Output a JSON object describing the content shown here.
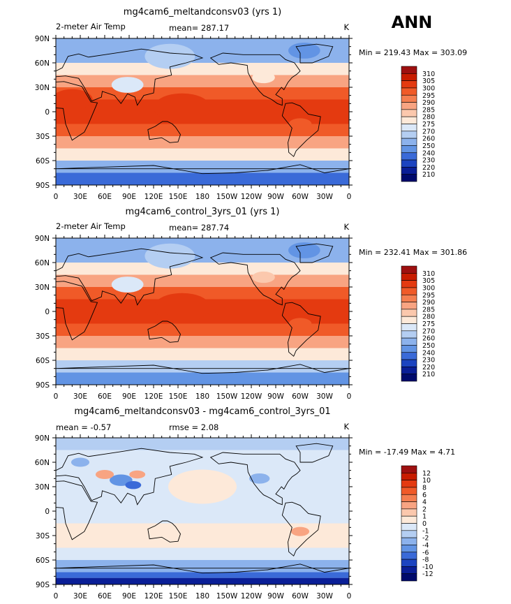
{
  "season": "ANN",
  "axes": {
    "lat_labels": [
      "90N",
      "60N",
      "30N",
      "0",
      "30S",
      "60S",
      "90S"
    ],
    "lon_labels": [
      "0",
      "30E",
      "60E",
      "90E",
      "120E",
      "150E",
      "180",
      "150W",
      "120W",
      "90W",
      "60W",
      "30W",
      "0"
    ]
  },
  "chart_data": [
    {
      "type": "heatmap",
      "title": "mg4cam6_meltandconsv03 (yrs 1)",
      "variable": "2-meter Air Temp",
      "units": "K",
      "stat_left": "mean= 287.17",
      "stat_mid": "",
      "min_max": "Min = 219.43 Max = 303.09",
      "x_range": [
        0,
        360
      ],
      "y_range": [
        -90,
        90
      ],
      "colorbar_levels": [
        "310",
        "305",
        "300",
        "295",
        "290",
        "285",
        "280",
        "275",
        "270",
        "260",
        "250",
        "240",
        "230",
        "220",
        "210"
      ],
      "colorbar_colors": [
        "#9e1010",
        "#c81c00",
        "#e43a10",
        "#f05a28",
        "#f47e50",
        "#f8a482",
        "#fbc8ad",
        "#fde9d9",
        "#dbe8f8",
        "#b4cef2",
        "#8cb2ec",
        "#6294e4",
        "#3a6ad8",
        "#1c44c0",
        "#0a1e96",
        "#000a6c"
      ],
      "zones": [
        {
          "lat": [
            60,
            90
          ],
          "value": 255
        },
        {
          "lat": [
            45,
            60
          ],
          "value": 275
        },
        {
          "lat": [
            30,
            45
          ],
          "value": 288
        },
        {
          "lat": [
            15,
            30
          ],
          "value": 296
        },
        {
          "lat": [
            -15,
            15
          ],
          "value": 300
        },
        {
          "lat": [
            -30,
            -15
          ],
          "value": 295
        },
        {
          "lat": [
            -45,
            -30
          ],
          "value": 285
        },
        {
          "lat": [
            -60,
            -45
          ],
          "value": 276
        },
        {
          "lat": [
            -75,
            -60
          ],
          "value": 258
        },
        {
          "lat": [
            -90,
            -75
          ],
          "value": 232
        }
      ],
      "anomalies": [
        {
          "lon": 88,
          "lat": 33,
          "r": 14,
          "value": 270
        },
        {
          "lon": 255,
          "lat": 42,
          "r": 10,
          "value": 278
        },
        {
          "lon": 300,
          "lat": -15,
          "r": 10,
          "value": 296
        },
        {
          "lon": 305,
          "lat": 75,
          "r": 14,
          "value": 245
        },
        {
          "lon": 140,
          "lat": 68,
          "r": 22,
          "value": 262
        },
        {
          "lon": 155,
          "lat": 5,
          "r": 25,
          "value": 303
        },
        {
          "lon": 20,
          "lat": 15,
          "r": 18,
          "value": 302
        }
      ]
    },
    {
      "type": "heatmap",
      "title": "mg4cam6_control_3yrs_01 (yrs 1)",
      "variable": "2-meter Air Temp",
      "units": "K",
      "stat_left": "mean= 287.74",
      "stat_mid": "",
      "min_max": "Min = 232.41 Max = 301.86",
      "x_range": [
        0,
        360
      ],
      "y_range": [
        -90,
        90
      ],
      "colorbar_levels": [
        "310",
        "305",
        "300",
        "295",
        "290",
        "285",
        "280",
        "275",
        "270",
        "260",
        "250",
        "240",
        "230",
        "220",
        "210"
      ],
      "colorbar_colors": [
        "#9e1010",
        "#c81c00",
        "#e43a10",
        "#f05a28",
        "#f47e50",
        "#f8a482",
        "#fbc8ad",
        "#fde9d9",
        "#dbe8f8",
        "#b4cef2",
        "#8cb2ec",
        "#6294e4",
        "#3a6ad8",
        "#1c44c0",
        "#0a1e96",
        "#000a6c"
      ],
      "zones": [
        {
          "lat": [
            60,
            90
          ],
          "value": 258
        },
        {
          "lat": [
            45,
            60
          ],
          "value": 276
        },
        {
          "lat": [
            30,
            45
          ],
          "value": 289
        },
        {
          "lat": [
            15,
            30
          ],
          "value": 296
        },
        {
          "lat": [
            -15,
            15
          ],
          "value": 300
        },
        {
          "lat": [
            -30,
            -15
          ],
          "value": 295
        },
        {
          "lat": [
            -45,
            -30
          ],
          "value": 285
        },
        {
          "lat": [
            -60,
            -45
          ],
          "value": 276
        },
        {
          "lat": [
            -75,
            -60
          ],
          "value": 262
        },
        {
          "lat": [
            -90,
            -75
          ],
          "value": 245
        }
      ],
      "anomalies": [
        {
          "lon": 88,
          "lat": 33,
          "r": 14,
          "value": 272
        },
        {
          "lon": 255,
          "lat": 42,
          "r": 10,
          "value": 280
        },
        {
          "lon": 300,
          "lat": -15,
          "r": 10,
          "value": 297
        },
        {
          "lon": 305,
          "lat": 75,
          "r": 14,
          "value": 248
        },
        {
          "lon": 140,
          "lat": 68,
          "r": 22,
          "value": 264
        },
        {
          "lon": 155,
          "lat": 5,
          "r": 25,
          "value": 302
        }
      ]
    },
    {
      "type": "heatmap",
      "title": "mg4cam6_meltandconsv03 - mg4cam6_control_3yrs_01",
      "variable": "",
      "units": "K",
      "stat_left": "mean = -0.57",
      "stat_mid": "rmse = 2.08",
      "min_max": "Min = -17.49 Max = 4.71",
      "x_range": [
        0,
        360
      ],
      "y_range": [
        -90,
        90
      ],
      "colorbar_levels": [
        "12",
        "10",
        "8",
        "6",
        "4",
        "2",
        "1",
        "0",
        "-1",
        "-2",
        "-4",
        "-6",
        "-8",
        "-10",
        "-12"
      ],
      "colorbar_colors": [
        "#9e1010",
        "#c81c00",
        "#e43a10",
        "#f05a28",
        "#f47e50",
        "#f8a482",
        "#fbc8ad",
        "#fde9d9",
        "#dbe8f8",
        "#b4cef2",
        "#8cb2ec",
        "#6294e4",
        "#3a6ad8",
        "#1c44c0",
        "#0a1e96",
        "#000a6c"
      ],
      "zones": [
        {
          "lat": [
            75,
            90
          ],
          "value": -1.5
        },
        {
          "lat": [
            45,
            75
          ],
          "value": -0.5
        },
        {
          "lat": [
            -15,
            45
          ],
          "value": -0.5
        },
        {
          "lat": [
            -45,
            -15
          ],
          "value": 0.5
        },
        {
          "lat": [
            -60,
            -45
          ],
          "value": -0.5
        },
        {
          "lat": [
            -75,
            -60
          ],
          "value": -3
        },
        {
          "lat": [
            -82,
            -75
          ],
          "value": -7
        },
        {
          "lat": [
            -90,
            -82
          ],
          "value": -11
        }
      ],
      "anomalies": [
        {
          "lon": 80,
          "lat": 38,
          "r": 10,
          "value": -5
        },
        {
          "lon": 95,
          "lat": 32,
          "r": 7,
          "value": -7
        },
        {
          "lon": 60,
          "lat": 45,
          "r": 8,
          "value": 3
        },
        {
          "lon": 100,
          "lat": 45,
          "r": 7,
          "value": 2
        },
        {
          "lon": 30,
          "lat": 60,
          "r": 8,
          "value": -2.5
        },
        {
          "lon": 300,
          "lat": -25,
          "r": 8,
          "value": 3
        },
        {
          "lon": 250,
          "lat": 40,
          "r": 9,
          "value": -2.5
        },
        {
          "lon": 180,
          "lat": 30,
          "r": 30,
          "value": 0.5
        }
      ]
    }
  ]
}
